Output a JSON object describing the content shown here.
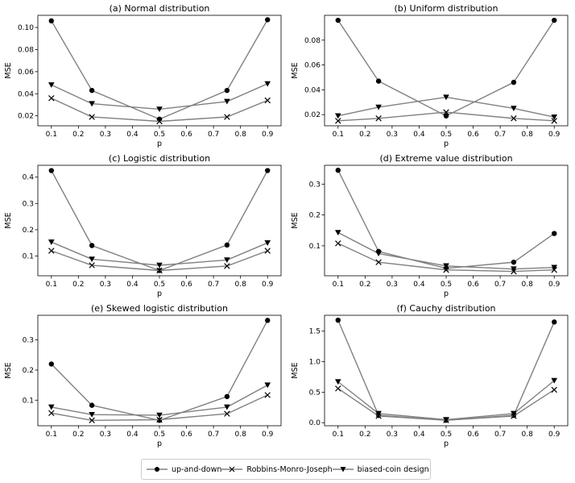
{
  "chart_data": [
    {
      "type": "line",
      "title": "(a) Normal distribution",
      "xlabel": "p",
      "ylabel": "MSE",
      "x": [
        0.1,
        0.25,
        0.5,
        0.75,
        0.9
      ],
      "xlim": [
        0.05,
        0.95
      ],
      "xticks": [
        0.1,
        0.2,
        0.3,
        0.4,
        0.5,
        0.6,
        0.7,
        0.8,
        0.9
      ],
      "xtick_labels": [
        "0.1",
        "0.2",
        "0.3",
        "0.4",
        "0.5",
        "0.6",
        "0.7",
        "0.8",
        "0.9"
      ],
      "ylim": [
        0.011,
        0.111
      ],
      "yticks": [
        0.02,
        0.04,
        0.06,
        0.08,
        0.1
      ],
      "ytick_labels": [
        "0.02",
        "0.04",
        "0.06",
        "0.08",
        "0.10"
      ],
      "series": [
        {
          "name": "up-and-down",
          "values": [
            0.106,
            0.043,
            0.017,
            0.043,
            0.107
          ]
        },
        {
          "name": "Robbins-Monro-Joseph",
          "values": [
            0.036,
            0.019,
            0.015,
            0.019,
            0.034
          ]
        },
        {
          "name": "biased-coin design",
          "values": [
            0.048,
            0.031,
            0.026,
            0.033,
            0.049
          ]
        }
      ]
    },
    {
      "type": "line",
      "title": "(b) Uniform distribution",
      "xlabel": "p",
      "ylabel": "MSE",
      "x": [
        0.1,
        0.25,
        0.5,
        0.75,
        0.9
      ],
      "xlim": [
        0.05,
        0.95
      ],
      "xticks": [
        0.1,
        0.2,
        0.3,
        0.4,
        0.5,
        0.6,
        0.7,
        0.8,
        0.9
      ],
      "xtick_labels": [
        "0.1",
        "0.2",
        "0.3",
        "0.4",
        "0.5",
        "0.6",
        "0.7",
        "0.8",
        "0.9"
      ],
      "ylim": [
        0.011,
        0.1
      ],
      "yticks": [
        0.02,
        0.04,
        0.06,
        0.08
      ],
      "ytick_labels": [
        "0.02",
        "0.04",
        "0.06",
        "0.08"
      ],
      "series": [
        {
          "name": "up-and-down",
          "values": [
            0.096,
            0.047,
            0.019,
            0.046,
            0.096
          ]
        },
        {
          "name": "Robbins-Monro-Joseph",
          "values": [
            0.015,
            0.017,
            0.022,
            0.017,
            0.015
          ]
        },
        {
          "name": "biased-coin design",
          "values": [
            0.019,
            0.026,
            0.034,
            0.025,
            0.018
          ]
        }
      ]
    },
    {
      "type": "line",
      "title": "(c) Logistic distribution",
      "xlabel": "p",
      "ylabel": "MSE",
      "x": [
        0.1,
        0.25,
        0.5,
        0.75,
        0.9
      ],
      "xlim": [
        0.05,
        0.95
      ],
      "xticks": [
        0.1,
        0.2,
        0.3,
        0.4,
        0.5,
        0.6,
        0.7,
        0.8,
        0.9
      ],
      "xtick_labels": [
        "0.1",
        "0.2",
        "0.3",
        "0.4",
        "0.5",
        "0.6",
        "0.7",
        "0.8",
        "0.9"
      ],
      "ylim": [
        0.025,
        0.445
      ],
      "yticks": [
        0.1,
        0.2,
        0.3,
        0.4
      ],
      "ytick_labels": [
        "0.1",
        "0.2",
        "0.3",
        "0.4"
      ],
      "series": [
        {
          "name": "up-and-down",
          "values": [
            0.425,
            0.14,
            0.045,
            0.142,
            0.425
          ]
        },
        {
          "name": "Robbins-Monro-Joseph",
          "values": [
            0.12,
            0.065,
            0.045,
            0.062,
            0.12
          ]
        },
        {
          "name": "biased-coin design",
          "values": [
            0.153,
            0.088,
            0.065,
            0.085,
            0.15
          ]
        }
      ]
    },
    {
      "type": "line",
      "title": "(d) Extreme value distribution",
      "xlabel": "p",
      "ylabel": "MSE",
      "x": [
        0.1,
        0.25,
        0.5,
        0.75,
        0.9
      ],
      "xlim": [
        0.05,
        0.95
      ],
      "xticks": [
        0.1,
        0.2,
        0.3,
        0.4,
        0.5,
        0.6,
        0.7,
        0.8,
        0.9
      ],
      "xtick_labels": [
        "0.1",
        "0.2",
        "0.3",
        "0.4",
        "0.5",
        "0.6",
        "0.7",
        "0.8",
        "0.9"
      ],
      "ylim": [
        0.003,
        0.361
      ],
      "yticks": [
        0.1,
        0.2,
        0.3
      ],
      "ytick_labels": [
        "0.1",
        "0.2",
        "0.3"
      ],
      "series": [
        {
          "name": "up-and-down",
          "values": [
            0.345,
            0.082,
            0.027,
            0.047,
            0.14
          ]
        },
        {
          "name": "Robbins-Monro-Joseph",
          "values": [
            0.108,
            0.047,
            0.022,
            0.017,
            0.022
          ]
        },
        {
          "name": "biased-coin design",
          "values": [
            0.143,
            0.075,
            0.035,
            0.025,
            0.03
          ]
        }
      ]
    },
    {
      "type": "line",
      "title": "(e) Skewed logistic distribution",
      "xlabel": "p",
      "ylabel": "MSE",
      "x": [
        0.1,
        0.25,
        0.5,
        0.75,
        0.9
      ],
      "xlim": [
        0.05,
        0.95
      ],
      "xticks": [
        0.1,
        0.2,
        0.3,
        0.4,
        0.5,
        0.6,
        0.7,
        0.8,
        0.9
      ],
      "xtick_labels": [
        "0.1",
        "0.2",
        "0.3",
        "0.4",
        "0.5",
        "0.6",
        "0.7",
        "0.8",
        "0.9"
      ],
      "ylim": [
        0.015,
        0.382
      ],
      "yticks": [
        0.1,
        0.2,
        0.3
      ],
      "ytick_labels": [
        "0.1",
        "0.2",
        "0.3"
      ],
      "series": [
        {
          "name": "up-and-down",
          "values": [
            0.22,
            0.083,
            0.033,
            0.112,
            0.365
          ]
        },
        {
          "name": "Robbins-Monro-Joseph",
          "values": [
            0.057,
            0.033,
            0.035,
            0.055,
            0.117
          ]
        },
        {
          "name": "biased-coin design",
          "values": [
            0.077,
            0.052,
            0.05,
            0.077,
            0.15
          ]
        }
      ]
    },
    {
      "type": "line",
      "title": "(f) Cauchy distribution",
      "xlabel": "p",
      "ylabel": "MSE",
      "x": [
        0.1,
        0.25,
        0.5,
        0.75,
        0.9
      ],
      "xlim": [
        0.05,
        0.95
      ],
      "xticks": [
        0.1,
        0.2,
        0.3,
        0.4,
        0.5,
        0.6,
        0.7,
        0.8,
        0.9
      ],
      "xtick_labels": [
        "0.1",
        "0.2",
        "0.3",
        "0.4",
        "0.5",
        "0.6",
        "0.7",
        "0.8",
        "0.9"
      ],
      "ylim": [
        -0.05,
        1.76
      ],
      "yticks": [
        0.0,
        0.5,
        1.0,
        1.5
      ],
      "ytick_labels": [
        "0.0",
        "0.5",
        "1.0",
        "1.5"
      ],
      "series": [
        {
          "name": "up-and-down",
          "values": [
            1.68,
            0.12,
            0.04,
            0.12,
            1.65
          ]
        },
        {
          "name": "Robbins-Monro-Joseph",
          "values": [
            0.56,
            0.11,
            0.04,
            0.11,
            0.54
          ]
        },
        {
          "name": "biased-coin design",
          "values": [
            0.67,
            0.15,
            0.05,
            0.15,
            0.69
          ]
        }
      ]
    }
  ],
  "legend": [
    {
      "label": "up-and-down",
      "marker": "circle"
    },
    {
      "label": "Robbins-Monro-Joseph",
      "marker": "x"
    },
    {
      "label": "biased-coin design",
      "marker": "triangle-down"
    }
  ],
  "colors": {
    "line": "#808080",
    "marker": "#000000",
    "axis": "#000000",
    "background": "#ffffff"
  }
}
